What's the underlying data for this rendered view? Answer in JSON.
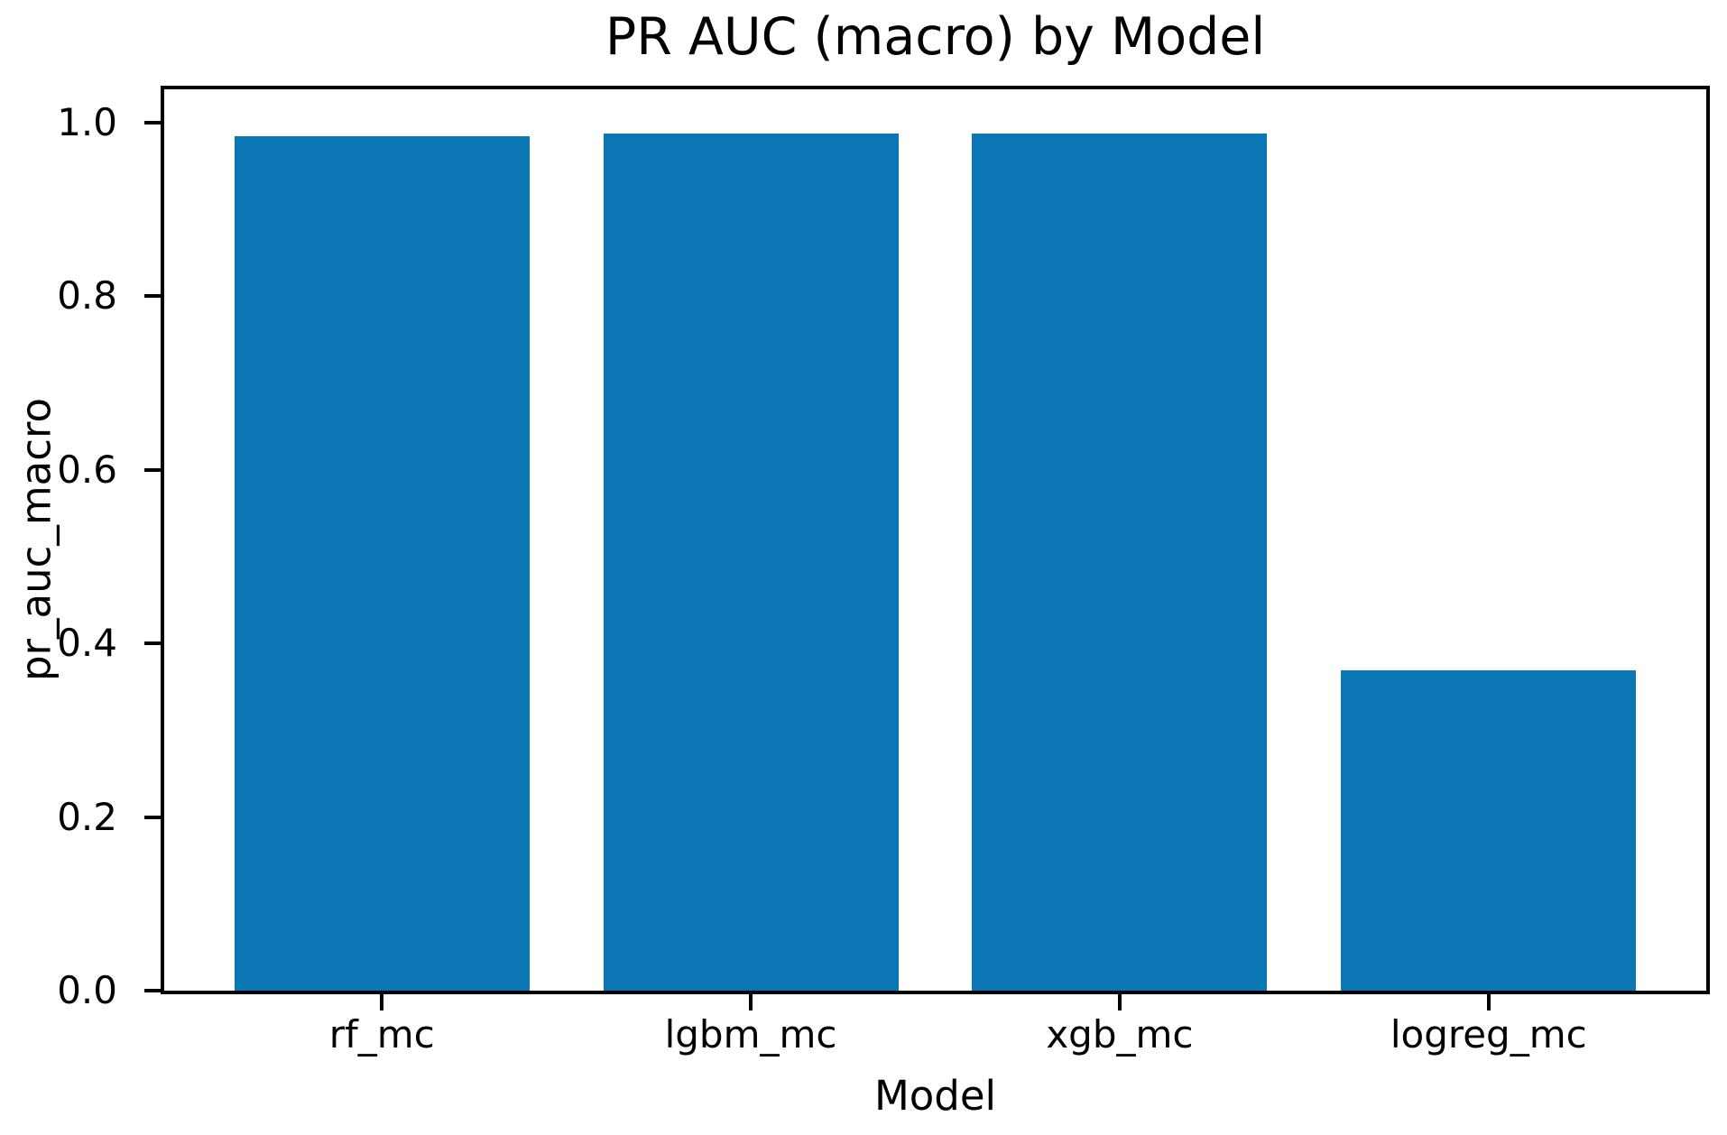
{
  "chart_data": {
    "type": "bar",
    "title": "PR AUC (macro) by Model",
    "xlabel": "Model",
    "ylabel": "pr_auc_macro",
    "categories": [
      "rf_mc",
      "lgbm_mc",
      "xgb_mc",
      "logreg_mc"
    ],
    "values": [
      0.984,
      0.987,
      0.987,
      0.369
    ],
    "ylim": [
      0,
      1.038
    ],
    "ytick_labels": [
      "0.0",
      "0.2",
      "0.4",
      "0.6",
      "0.8",
      "1.0"
    ],
    "xlim": [
      -0.59,
      3.59
    ],
    "bar_width_fraction": 0.8,
    "bar_color": "#0b76b4",
    "axis_color": "#000000",
    "background_color": "#ffffff",
    "grid": false,
    "legend_position": "none"
  }
}
